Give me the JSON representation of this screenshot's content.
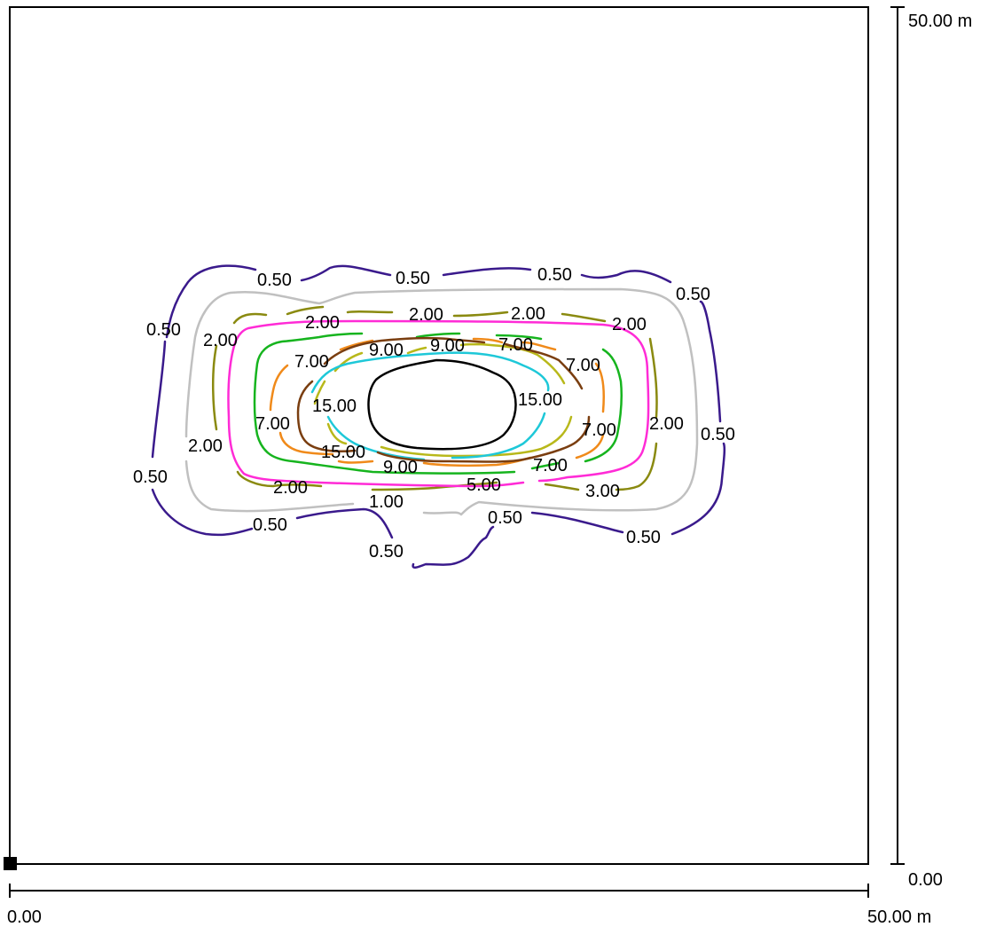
{
  "scale_labels": {
    "x_start": "0.00",
    "x_end": "50.00 m",
    "y_start": "0.00",
    "y_end": "50.00 m"
  },
  "contour_colors": {
    "0.50": "#3a1a8c",
    "1.00": "#c0c0c0",
    "2.00": "#8a8a10",
    "3.00": "#ff2bd6",
    "5.00": "#16b41e",
    "7.00": "#f08a1a",
    "9.00": "#b8b81a",
    "11.00": "#1ec8d8",
    "13.00": "#7a3e10",
    "15.00": "#000000"
  },
  "contour_labels": [
    {
      "text": "0.50",
      "color_level": "0.50"
    },
    {
      "text": "0.50",
      "color_level": "0.50"
    },
    {
      "text": "0.50",
      "color_level": "0.50"
    },
    {
      "text": "0.50",
      "color_level": "0.50"
    },
    {
      "text": "0.50",
      "color_level": "0.50"
    },
    {
      "text": "0.50",
      "color_level": "0.50"
    },
    {
      "text": "0.50",
      "color_level": "0.50"
    },
    {
      "text": "0.50",
      "color_level": "0.50"
    },
    {
      "text": "0.50",
      "color_level": "0.50"
    },
    {
      "text": "0.50",
      "color_level": "0.50"
    },
    {
      "text": "0.50",
      "color_level": "0.50"
    },
    {
      "text": "1.00",
      "color_level": "1.00"
    },
    {
      "text": "2.00",
      "color_level": "2.00"
    },
    {
      "text": "2.00",
      "color_level": "2.00"
    },
    {
      "text": "2.00",
      "color_level": "2.00"
    },
    {
      "text": "2.00",
      "color_level": "2.00"
    },
    {
      "text": "2.00",
      "color_level": "2.00"
    },
    {
      "text": "2.00",
      "color_level": "2.00"
    },
    {
      "text": "2.00",
      "color_level": "2.00"
    },
    {
      "text": "2.00",
      "color_level": "2.00"
    },
    {
      "text": "3.00",
      "color_level": "3.00"
    },
    {
      "text": "5.00",
      "color_level": "5.00"
    },
    {
      "text": "7.00",
      "color_level": "7.00"
    },
    {
      "text": "7.00",
      "color_level": "7.00"
    },
    {
      "text": "7.00",
      "color_level": "7.00"
    },
    {
      "text": "7.00",
      "color_level": "7.00"
    },
    {
      "text": "7.00",
      "color_level": "7.00"
    },
    {
      "text": "7.00",
      "color_level": "7.00"
    },
    {
      "text": "9.00",
      "color_level": "9.00"
    },
    {
      "text": "9.00",
      "color_level": "9.00"
    },
    {
      "text": "9.00",
      "color_level": "9.00"
    },
    {
      "text": "15.00",
      "color_level": "15.00"
    },
    {
      "text": "15.00",
      "color_level": "15.00"
    },
    {
      "text": "15.00",
      "color_level": "15.00"
    }
  ]
}
